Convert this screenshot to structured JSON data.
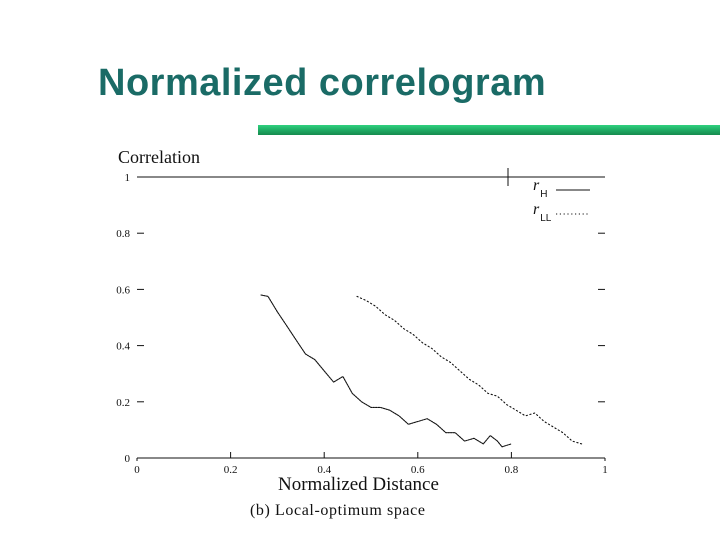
{
  "slide": {
    "title": "Normalized correlogram"
  },
  "colors": {
    "title": "#1a6b66",
    "accent_bar": "#1ea862",
    "ink": "#111111"
  },
  "chart_data": {
    "type": "line",
    "title": "",
    "ylabel": "Correlation",
    "xlabel": "Normalized Distance",
    "caption": "(b)  Local-optimum  space",
    "xlim": [
      0,
      1
    ],
    "ylim": [
      0,
      1
    ],
    "xticks": [
      "0",
      "0.2",
      "0.4",
      "0.6",
      "0.8",
      "1"
    ],
    "yticks": [
      "0",
      "0.2",
      "0.4",
      "0.6",
      "0.8",
      "1"
    ],
    "grid": false,
    "legend_position": "top-right",
    "series": [
      {
        "name": "rH",
        "symbol": "r",
        "subscript": "H",
        "style": "solid",
        "points": [
          [
            0.265,
            0.58
          ],
          [
            0.28,
            0.575
          ],
          [
            0.3,
            0.52
          ],
          [
            0.32,
            0.47
          ],
          [
            0.34,
            0.42
          ],
          [
            0.36,
            0.37
          ],
          [
            0.38,
            0.35
          ],
          [
            0.4,
            0.31
          ],
          [
            0.42,
            0.27
          ],
          [
            0.44,
            0.29
          ],
          [
            0.46,
            0.23
          ],
          [
            0.48,
            0.2
          ],
          [
            0.5,
            0.18
          ],
          [
            0.52,
            0.18
          ],
          [
            0.54,
            0.17
          ],
          [
            0.56,
            0.15
          ],
          [
            0.58,
            0.12
          ],
          [
            0.6,
            0.13
          ],
          [
            0.62,
            0.14
          ],
          [
            0.64,
            0.12
          ],
          [
            0.66,
            0.09
          ],
          [
            0.68,
            0.09
          ],
          [
            0.7,
            0.06
          ],
          [
            0.72,
            0.07
          ],
          [
            0.74,
            0.05
          ],
          [
            0.755,
            0.08
          ],
          [
            0.77,
            0.06
          ],
          [
            0.78,
            0.04
          ],
          [
            0.8,
            0.05
          ]
        ]
      },
      {
        "name": "rLL",
        "symbol": "r",
        "subscript": "LL",
        "style": "dotted",
        "points": [
          [
            0.47,
            0.575
          ],
          [
            0.49,
            0.56
          ],
          [
            0.51,
            0.54
          ],
          [
            0.53,
            0.51
          ],
          [
            0.55,
            0.49
          ],
          [
            0.57,
            0.46
          ],
          [
            0.59,
            0.44
          ],
          [
            0.61,
            0.41
          ],
          [
            0.63,
            0.39
          ],
          [
            0.65,
            0.36
          ],
          [
            0.67,
            0.34
          ],
          [
            0.69,
            0.31
          ],
          [
            0.71,
            0.28
          ],
          [
            0.73,
            0.26
          ],
          [
            0.75,
            0.23
          ],
          [
            0.77,
            0.22
          ],
          [
            0.79,
            0.19
          ],
          [
            0.81,
            0.17
          ],
          [
            0.83,
            0.15
          ],
          [
            0.85,
            0.16
          ],
          [
            0.87,
            0.13
          ],
          [
            0.89,
            0.11
          ],
          [
            0.91,
            0.09
          ],
          [
            0.93,
            0.06
          ],
          [
            0.95,
            0.05
          ]
        ]
      }
    ]
  }
}
